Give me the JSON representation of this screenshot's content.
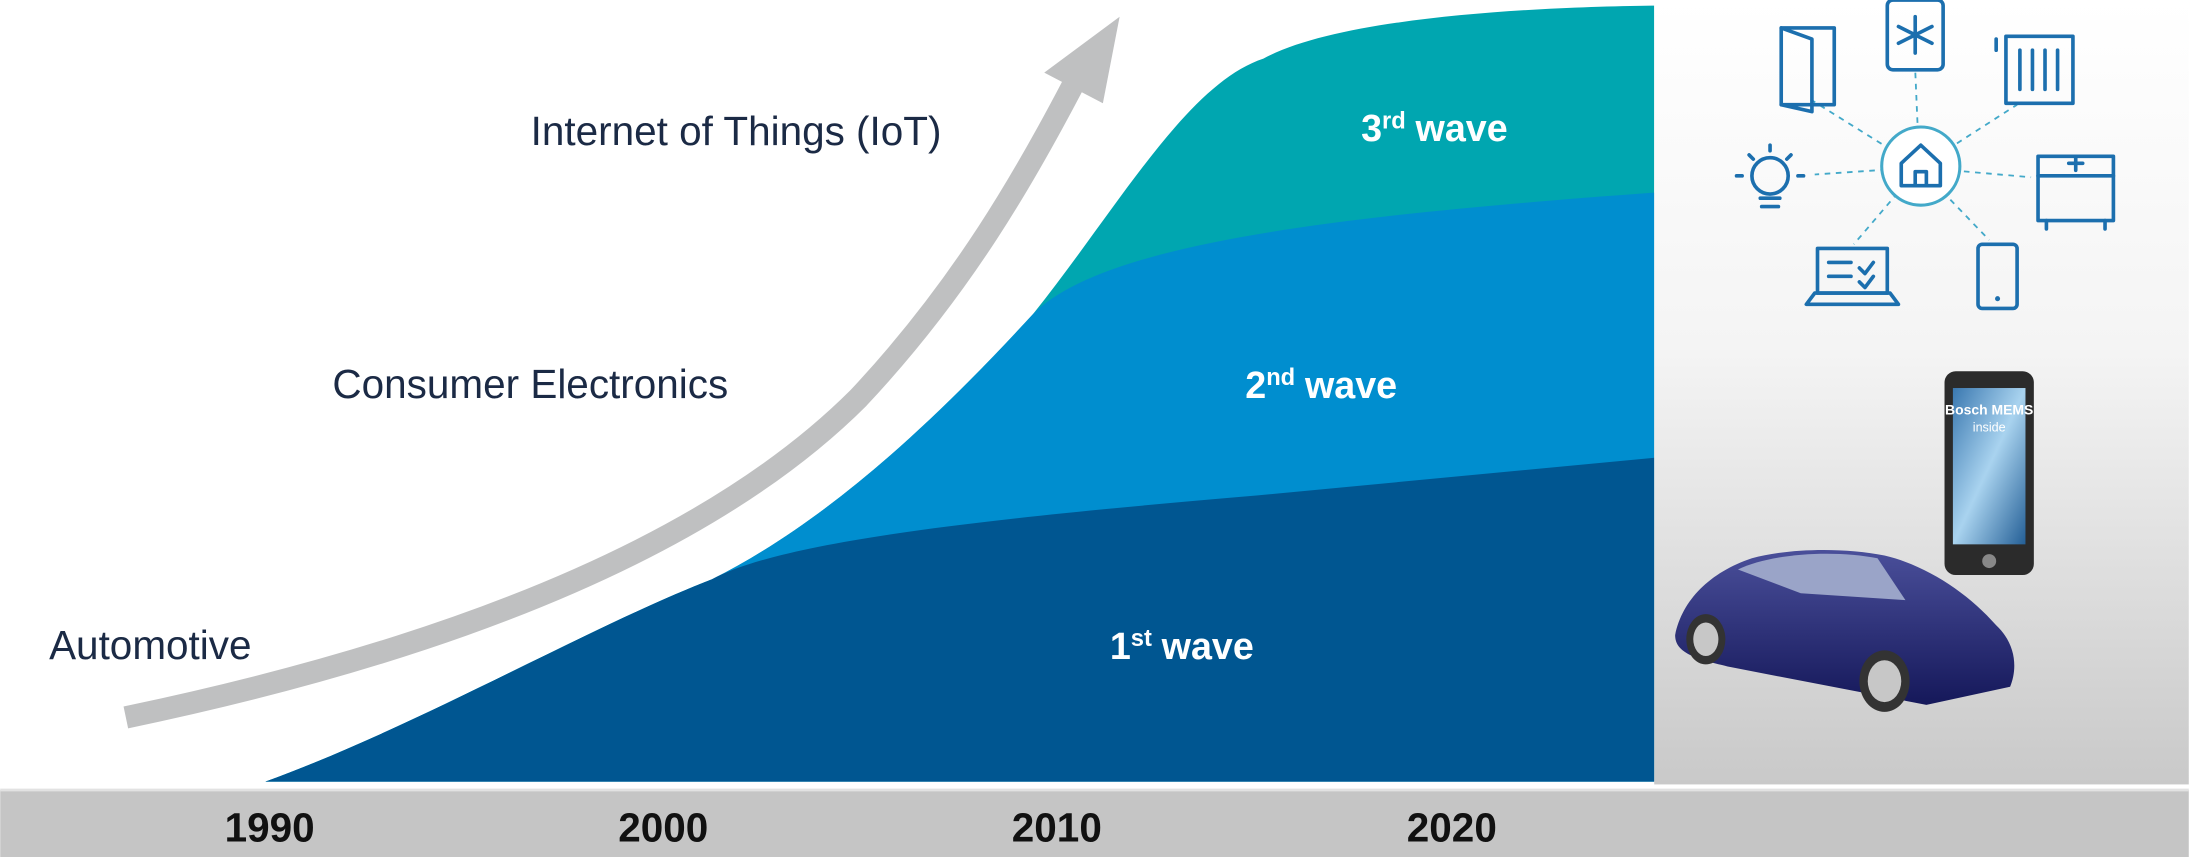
{
  "labels": {
    "iot": "Internet of Things (IoT)",
    "consumer": "Consumer Electronics",
    "automotive": "Automotive"
  },
  "waves": [
    {
      "ordinal": "3",
      "suffix": "rd",
      "word": "wave"
    },
    {
      "ordinal": "2",
      "suffix": "nd",
      "word": "wave"
    },
    {
      "ordinal": "1",
      "suffix": "st",
      "word": "wave"
    }
  ],
  "timeline": [
    "1990",
    "2000",
    "2010",
    "2020"
  ],
  "device_screen": [
    "Bosch MEMS",
    "inside"
  ]
}
